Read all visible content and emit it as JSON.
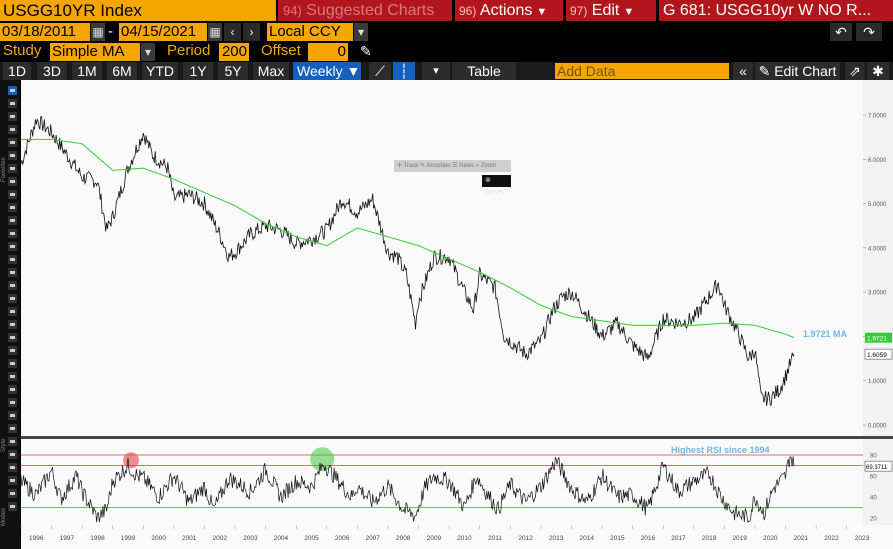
{
  "header": {
    "ticker": "USGG10YR Index",
    "suggested_num": "94)",
    "suggested_label": "Suggested Charts",
    "actions_num": "96)",
    "actions_label": "Actions",
    "edit_num": "97)",
    "edit_label": "Edit",
    "chart_title": "G 681: USGG10yr W NO R..."
  },
  "range": {
    "start_date": "03/18/2011",
    "end_date": "04/15/2021",
    "currency": "Local CCY",
    "separator": "-"
  },
  "study": {
    "label": "Study",
    "type": "Simple MA",
    "period_label": "Period",
    "period": "200",
    "offset_label": "Offset",
    "offset": "0"
  },
  "periods": [
    "1D",
    "3D",
    "1M",
    "6M",
    "YTD",
    "1Y",
    "5Y",
    "Max"
  ],
  "frequency": "Weekly",
  "toolbar": {
    "table_label": "Table",
    "add_data_placeholder": "Add Data",
    "edit_chart_label": "Edit Chart"
  },
  "popup": {
    "items": [
      "Track",
      "Annotate",
      "News",
      "Zoom"
    ],
    "reset_label": "Reset"
  },
  "sidebar": {
    "favorites_label": "Favorites",
    "style_label": "Style",
    "modes_label": "Modes"
  },
  "colors": {
    "accent": "#f4a500",
    "red_tab": "#b3151c",
    "selected": "#1560bd",
    "ma_line": "#33cc33",
    "ma_label": "#6fb7e8",
    "rsi_upper_line": "#d23c3c",
    "rsi_lower_line": "#33b033"
  },
  "chart_data": [
    {
      "type": "line",
      "name": "price-panel",
      "series": [
        {
          "name": "USGG10YR",
          "x": [
            1996,
            1996.5,
            1997,
            1997.5,
            1998,
            1998.5,
            1998.8,
            1999,
            1999.5,
            2000,
            2000.3,
            2000.8,
            2001,
            2001.5,
            2002,
            2002.5,
            2002.8,
            2003,
            2003.5,
            2004,
            2004.5,
            2005,
            2005.5,
            2006,
            2006.5,
            2007,
            2007.5,
            2008,
            2008.3,
            2008.6,
            2008.9,
            2009,
            2009.5,
            2010,
            2010.5,
            2010.8,
            2011,
            2011.5,
            2011.8,
            2012,
            2012.5,
            2013,
            2013.4,
            2013.7,
            2014,
            2014.5,
            2015,
            2015.5,
            2016,
            2016.5,
            2017,
            2017.5,
            2018,
            2018.5,
            2018.8,
            2019,
            2019.5,
            2019.8,
            2020,
            2020.2,
            2020.5,
            2020.8,
            2021,
            2021.28
          ],
          "values": [
            5.9,
            6.9,
            6.6,
            6.1,
            5.6,
            5.5,
            4.4,
            4.7,
            5.8,
            6.6,
            6.1,
            5.8,
            5.1,
            5.2,
            5.0,
            4.3,
            3.8,
            3.9,
            4.3,
            4.5,
            4.4,
            4.1,
            4.2,
            4.4,
            5.1,
            4.8,
            5.1,
            3.9,
            3.8,
            3.4,
            2.3,
            2.8,
            3.8,
            3.8,
            3.0,
            2.6,
            3.4,
            3.1,
            2.0,
            1.9,
            1.6,
            1.9,
            2.6,
            2.9,
            3.0,
            2.5,
            2.0,
            2.3,
            1.8,
            1.5,
            2.4,
            2.3,
            2.4,
            2.9,
            3.2,
            2.7,
            2.0,
            1.5,
            1.7,
            0.6,
            0.6,
            0.8,
            1.1,
            1.6
          ]
        },
        {
          "name": "200-week MA",
          "x": [
            1996,
            1997,
            1998,
            1999,
            2000,
            2001,
            2002,
            2003,
            2004,
            2005,
            2006,
            2007,
            2008,
            2009,
            2010,
            2011,
            2012,
            2013,
            2014,
            2015,
            2016,
            2017,
            2018,
            2019,
            2020,
            2021,
            2021.28
          ],
          "values": [
            6.45,
            6.45,
            6.35,
            5.75,
            5.8,
            5.55,
            5.25,
            4.95,
            4.55,
            4.25,
            4.05,
            4.45,
            4.25,
            4.05,
            3.75,
            3.45,
            3.1,
            2.7,
            2.45,
            2.35,
            2.25,
            2.25,
            2.25,
            2.3,
            2.25,
            2.05,
            1.9721
          ]
        }
      ],
      "ylim": [
        0,
        7.5
      ],
      "ytick_labels": [
        "0.0000",
        "1.0000",
        "2.0000",
        "3.0000",
        "4.0000",
        "5.0000",
        "6.0000",
        "7.0000"
      ],
      "last_price_label": "1.6059",
      "ma_value_label": "1.9721",
      "ma_annotation": "1.9721 MA",
      "grid": false
    },
    {
      "type": "line",
      "name": "rsi-panel",
      "series": [
        {
          "name": "RSI",
          "x": [
            1996,
            1996.5,
            1997,
            1997.3,
            1997.8,
            1998,
            1998.5,
            1998.8,
            1999,
            1999.5,
            1999.8,
            2000,
            2000.5,
            2001,
            2001.5,
            2002,
            2002.3,
            2002.8,
            2003,
            2003.5,
            2004,
            2004.5,
            2005,
            2005.5,
            2005.9,
            2006.3,
            2006.8,
            2007,
            2007.5,
            2008,
            2008.5,
            2008.9,
            2009.2,
            2009.5,
            2010,
            2010.5,
            2010.9,
            2011.2,
            2011.6,
            2012,
            2012.5,
            2013,
            2013.5,
            2014,
            2014.5,
            2015,
            2015.5,
            2016,
            2016.5,
            2017,
            2017.5,
            2018,
            2018.5,
            2018.9,
            2019.3,
            2019.8,
            2020,
            2020.3,
            2020.6,
            2021,
            2021.15,
            2021.28
          ],
          "values": [
            55,
            42,
            65,
            38,
            60,
            45,
            20,
            28,
            55,
            70,
            60,
            58,
            40,
            60,
            35,
            50,
            28,
            58,
            55,
            45,
            66,
            40,
            55,
            50,
            72,
            58,
            40,
            50,
            35,
            50,
            28,
            22,
            48,
            60,
            55,
            30,
            60,
            45,
            28,
            52,
            35,
            50,
            75,
            48,
            35,
            60,
            40,
            42,
            28,
            70,
            45,
            55,
            62,
            40,
            25,
            20,
            40,
            25,
            48,
            60,
            80,
            69.3711
          ]
        }
      ],
      "ylim": [
        15,
        90
      ],
      "ytick_labels": [
        "20",
        "40",
        "60",
        "80"
      ],
      "upper_line": 80,
      "mid_line": 70,
      "lower_line": 30,
      "last_value_label": "69.3711",
      "annotation": "Highest RSI since 1994",
      "highlights": [
        {
          "x": 1999.6,
          "y": 75,
          "color": "red"
        },
        {
          "x": 2005.85,
          "y": 76,
          "color": "green"
        }
      ],
      "x_labels": [
        "1996",
        "1997",
        "1998",
        "1999",
        "2000",
        "2001",
        "2002",
        "2003",
        "2004",
        "2005",
        "2006",
        "2007",
        "2008",
        "2009",
        "2010",
        "2011",
        "2012",
        "2013",
        "2014",
        "2015",
        "2016",
        "2017",
        "2018",
        "2019",
        "2020",
        "2021",
        "2022",
        "2023"
      ]
    }
  ]
}
